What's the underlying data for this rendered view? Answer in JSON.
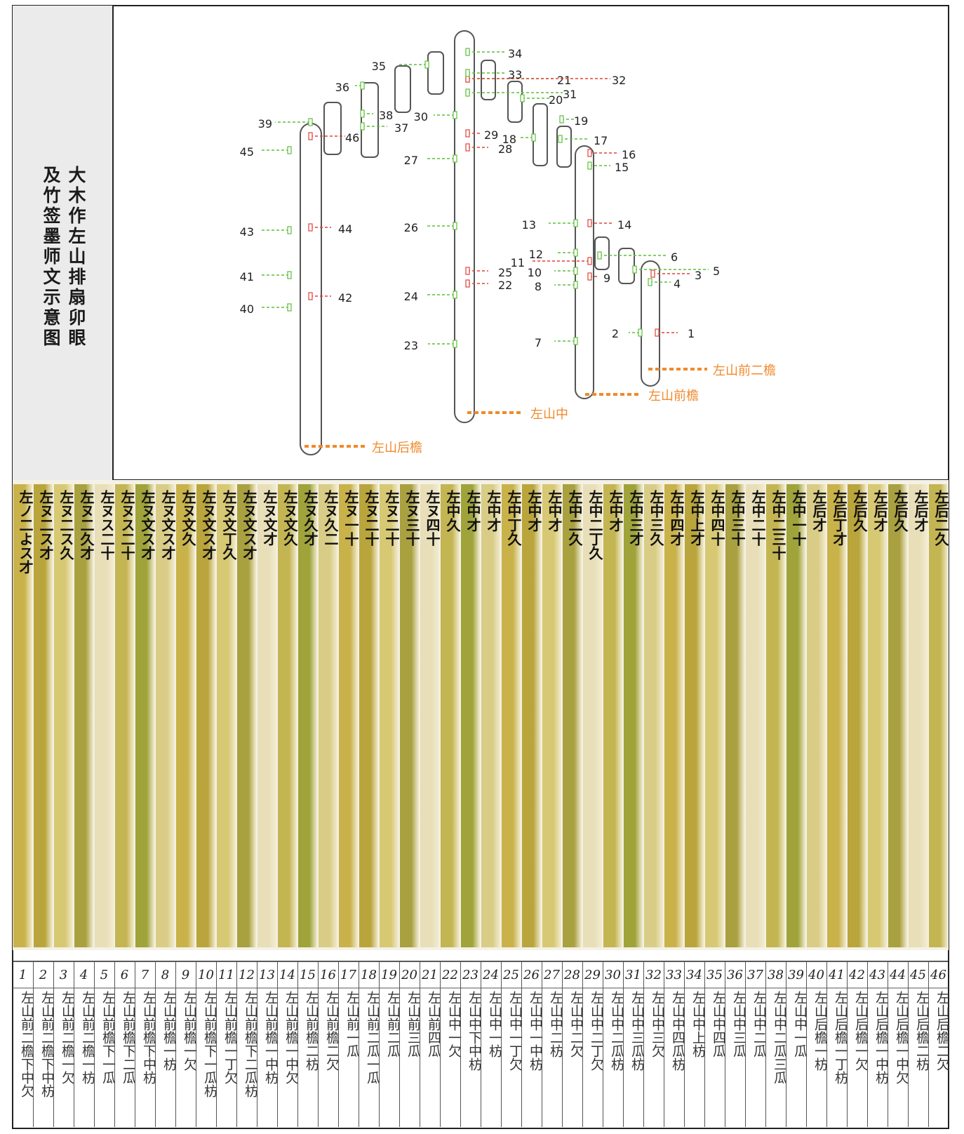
{
  "title": {
    "line1": "大木作左山排扇卯眼",
    "line2": "及竹签墨师文示意图"
  },
  "diagram": {
    "columns": [
      {
        "name": "左山后檐"
      },
      {
        "name": "左山中"
      },
      {
        "name": "左山前檐"
      },
      {
        "name": "左山前二檐"
      }
    ],
    "markers": [
      "1",
      "2",
      "3",
      "4",
      "5",
      "6",
      "7",
      "8",
      "9",
      "10",
      "11",
      "12",
      "13",
      "14",
      "15",
      "16",
      "17",
      "18",
      "19",
      "20",
      "21",
      "22",
      "23",
      "24",
      "25",
      "26",
      "27",
      "28",
      "29",
      "30",
      "31",
      "32",
      "33",
      "34",
      "35",
      "36",
      "37",
      "38",
      "39",
      "40",
      "41",
      "42",
      "43",
      "44",
      "45",
      "46"
    ],
    "colors": {
      "green": "#5cbf3a",
      "red": "#e0423a",
      "orange": "#f08a2c",
      "column_stroke": "#555555"
    }
  },
  "slats": [
    {
      "no": "1",
      "name": "左山前二檐下中欠",
      "script": "左ノ二よス才"
    },
    {
      "no": "2",
      "name": "左山前二檐下中枋",
      "script": "左ヌ二ス才"
    },
    {
      "no": "3",
      "name": "左山前二檐一欠",
      "script": "左ヌ二ス久"
    },
    {
      "no": "4",
      "name": "左山前二檐一枋",
      "script": "左ヌ二久才"
    },
    {
      "no": "5",
      "name": "左山前檐下一瓜",
      "script": "左ヌス二十"
    },
    {
      "no": "6",
      "name": "左山前檐下二瓜",
      "script": "左ヌス二十"
    },
    {
      "no": "7",
      "name": "左山前檐下中枋",
      "script": "左ヌ文ス才"
    },
    {
      "no": "8",
      "name": "左山前檐一枋",
      "script": "左ヌ文ス才"
    },
    {
      "no": "9",
      "name": "左山前檐一欠",
      "script": "左ヌ文久"
    },
    {
      "no": "10",
      "name": "左山前檐下一瓜枋",
      "script": "左ヌ文ス才"
    },
    {
      "no": "11",
      "name": "左山前檐一丁欠",
      "script": "左ヌ文丁久"
    },
    {
      "no": "12",
      "name": "左山前檐下二瓜枋",
      "script": "左ヌ文ス才"
    },
    {
      "no": "13",
      "name": "左山前檐一中枋",
      "script": "左ヌ文才"
    },
    {
      "no": "14",
      "name": "左山前檐一中欠",
      "script": "左ヌ文久"
    },
    {
      "no": "15",
      "name": "左山前檐二枋",
      "script": "左ヌ久才"
    },
    {
      "no": "16",
      "name": "左山前檐二欠",
      "script": "左ヌ久二"
    },
    {
      "no": "17",
      "name": "左山前一瓜",
      "script": "左ヌ一十"
    },
    {
      "no": "18",
      "name": "左山前二瓜一瓜",
      "script": "左ヌ二十"
    },
    {
      "no": "19",
      "name": "左山前二瓜",
      "script": "左ヌ二十"
    },
    {
      "no": "20",
      "name": "左山前三瓜",
      "script": "左ヌ三十"
    },
    {
      "no": "21",
      "name": "左山前四瓜",
      "script": "左ヌ四十"
    },
    {
      "no": "22",
      "name": "左山中一欠",
      "script": "左中久"
    },
    {
      "no": "23",
      "name": "左山中下中枋",
      "script": "左中才"
    },
    {
      "no": "24",
      "name": "左山中一枋",
      "script": "左中才"
    },
    {
      "no": "25",
      "name": "左山中一丁欠",
      "script": "左中丁久"
    },
    {
      "no": "26",
      "name": "左山中一中枋",
      "script": "左中才"
    },
    {
      "no": "27",
      "name": "左山中二枋",
      "script": "左中才"
    },
    {
      "no": "28",
      "name": "左山中二欠",
      "script": "左中二久"
    },
    {
      "no": "29",
      "name": "左山中二丁欠",
      "script": "左中二丁久"
    },
    {
      "no": "30",
      "name": "左山中二瓜枋",
      "script": "左中才"
    },
    {
      "no": "31",
      "name": "左山中三瓜枋",
      "script": "左中三才"
    },
    {
      "no": "32",
      "name": "左山中三欠",
      "script": "左中三久"
    },
    {
      "no": "33",
      "name": "左山中四瓜枋",
      "script": "左中四才"
    },
    {
      "no": "34",
      "name": "左山中上枋",
      "script": "左中上才"
    },
    {
      "no": "35",
      "name": "左山中四瓜",
      "script": "左中四十"
    },
    {
      "no": "36",
      "name": "左山中三瓜",
      "script": "左中三十"
    },
    {
      "no": "37",
      "name": "左山中二瓜",
      "script": "左中二十"
    },
    {
      "no": "38",
      "name": "左山中二瓜三瓜",
      "script": "左中二三十"
    },
    {
      "no": "39",
      "name": "左山中一瓜",
      "script": "左中一十"
    },
    {
      "no": "40",
      "name": "左山后檐一枋",
      "script": "左后才"
    },
    {
      "no": "41",
      "name": "左山后檐一丁枋",
      "script": "左后丁才"
    },
    {
      "no": "42",
      "name": "左山后檐一欠",
      "script": "左后久"
    },
    {
      "no": "43",
      "name": "左山后檐一中枋",
      "script": "左后才"
    },
    {
      "no": "44",
      "name": "左山后檐一中欠",
      "script": "左后久"
    },
    {
      "no": "45",
      "name": "左山后檐二枋",
      "script": "左后才"
    },
    {
      "no": "46",
      "name": "左山后檐二欠",
      "script": "左后二久"
    }
  ]
}
